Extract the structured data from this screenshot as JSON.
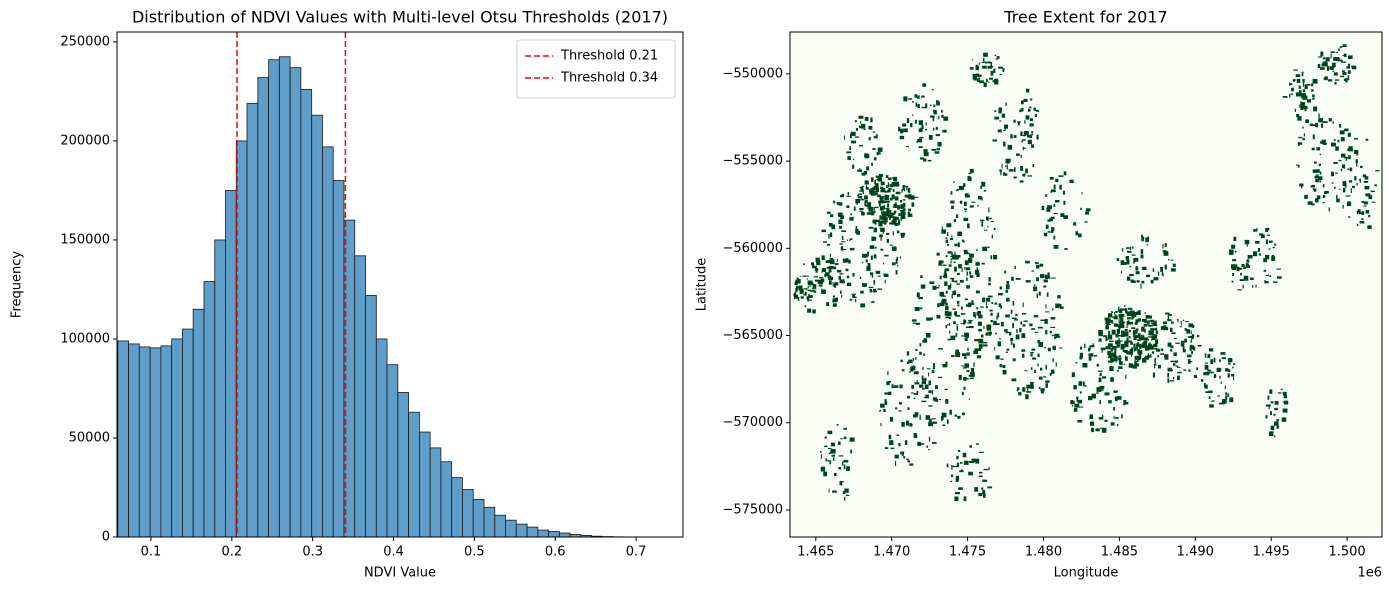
{
  "chart_data": [
    {
      "type": "histogram",
      "title": "Distribution of NDVI Values with Multi-level Otsu Thresholds (2017)",
      "x_label": "NDVI Value",
      "y_label": "Frequency",
      "bins": [
        0.059,
        0.0723,
        0.0856,
        0.099,
        0.1123,
        0.1256,
        0.1389,
        0.1522,
        0.1656,
        0.1789,
        0.1922,
        0.2055,
        0.2188,
        0.2322,
        0.2455,
        0.2588,
        0.2721,
        0.2854,
        0.2988,
        0.3121,
        0.3254,
        0.3387,
        0.352,
        0.3654,
        0.3787,
        0.392,
        0.4053,
        0.4186,
        0.432,
        0.4453,
        0.4586,
        0.4719,
        0.4852,
        0.4986,
        0.5119,
        0.5252,
        0.5385,
        0.5518,
        0.5652,
        0.5785,
        0.5918,
        0.6051,
        0.6184,
        0.6318,
        0.6451,
        0.6584,
        0.6717,
        0.685,
        0.6984,
        0.7117,
        0.725
      ],
      "values": [
        99000,
        97500,
        96000,
        95500,
        96500,
        100000,
        105000,
        115000,
        129000,
        150000,
        175000,
        200000,
        219000,
        232000,
        241000,
        242500,
        237000,
        226000,
        213000,
        197000,
        180000,
        160000,
        142000,
        122000,
        100000,
        87000,
        73000,
        63000,
        53000,
        45000,
        38000,
        30000,
        24000,
        19000,
        15000,
        11000,
        8500,
        6500,
        5000,
        3500,
        2800,
        2000,
        1300,
        800,
        400,
        200,
        100,
        50,
        0,
        20
      ],
      "color": "#5f9ec9",
      "edge_color": "#1a1a1a",
      "thresholds": [
        {
          "name": "Threshold 0.21",
          "value": 0.2064,
          "color": "#ff0000"
        },
        {
          "name": "Threshold 0.34",
          "value": 0.3405,
          "color": "#ff0000"
        }
      ],
      "legend": "upper right",
      "xlim": [
        0.058,
        0.758
      ],
      "xticks": [
        0.1,
        0.2,
        0.3,
        0.4,
        0.5,
        0.6,
        0.7
      ],
      "ylim": [
        0,
        255000
      ],
      "yticks": [
        0,
        50000,
        100000,
        150000,
        200000,
        250000
      ]
    },
    {
      "type": "raster",
      "title": "Tree Extent for 2017",
      "x_label": "Longitude",
      "y_label": "Latitude",
      "x_offset_label": "1e6",
      "background_color": "#f7fcf5",
      "tree_color": "#00441b",
      "xlim": [
        1463300,
        1502300
      ],
      "xticks": [
        {
          "value": 1465000,
          "label": "1.465"
        },
        {
          "value": 1470000,
          "label": "1.470"
        },
        {
          "value": 1475000,
          "label": "1.475"
        },
        {
          "value": 1480000,
          "label": "1.480"
        },
        {
          "value": 1485000,
          "label": "1.485"
        },
        {
          "value": 1490000,
          "label": "1.490"
        },
        {
          "value": 1495000,
          "label": "1.495"
        },
        {
          "value": 1500000,
          "label": "1.500"
        }
      ],
      "ylim": [
        -576550,
        -547600
      ],
      "yticks": [
        {
          "value": -550000,
          "label": "−550000"
        },
        {
          "value": -555000,
          "label": "−555000"
        },
        {
          "value": -560000,
          "label": "−560000"
        },
        {
          "value": -565000,
          "label": "−565000"
        },
        {
          "value": -570000,
          "label": "−570000"
        },
        {
          "value": -575000,
          "label": "−575000"
        }
      ]
    }
  ]
}
